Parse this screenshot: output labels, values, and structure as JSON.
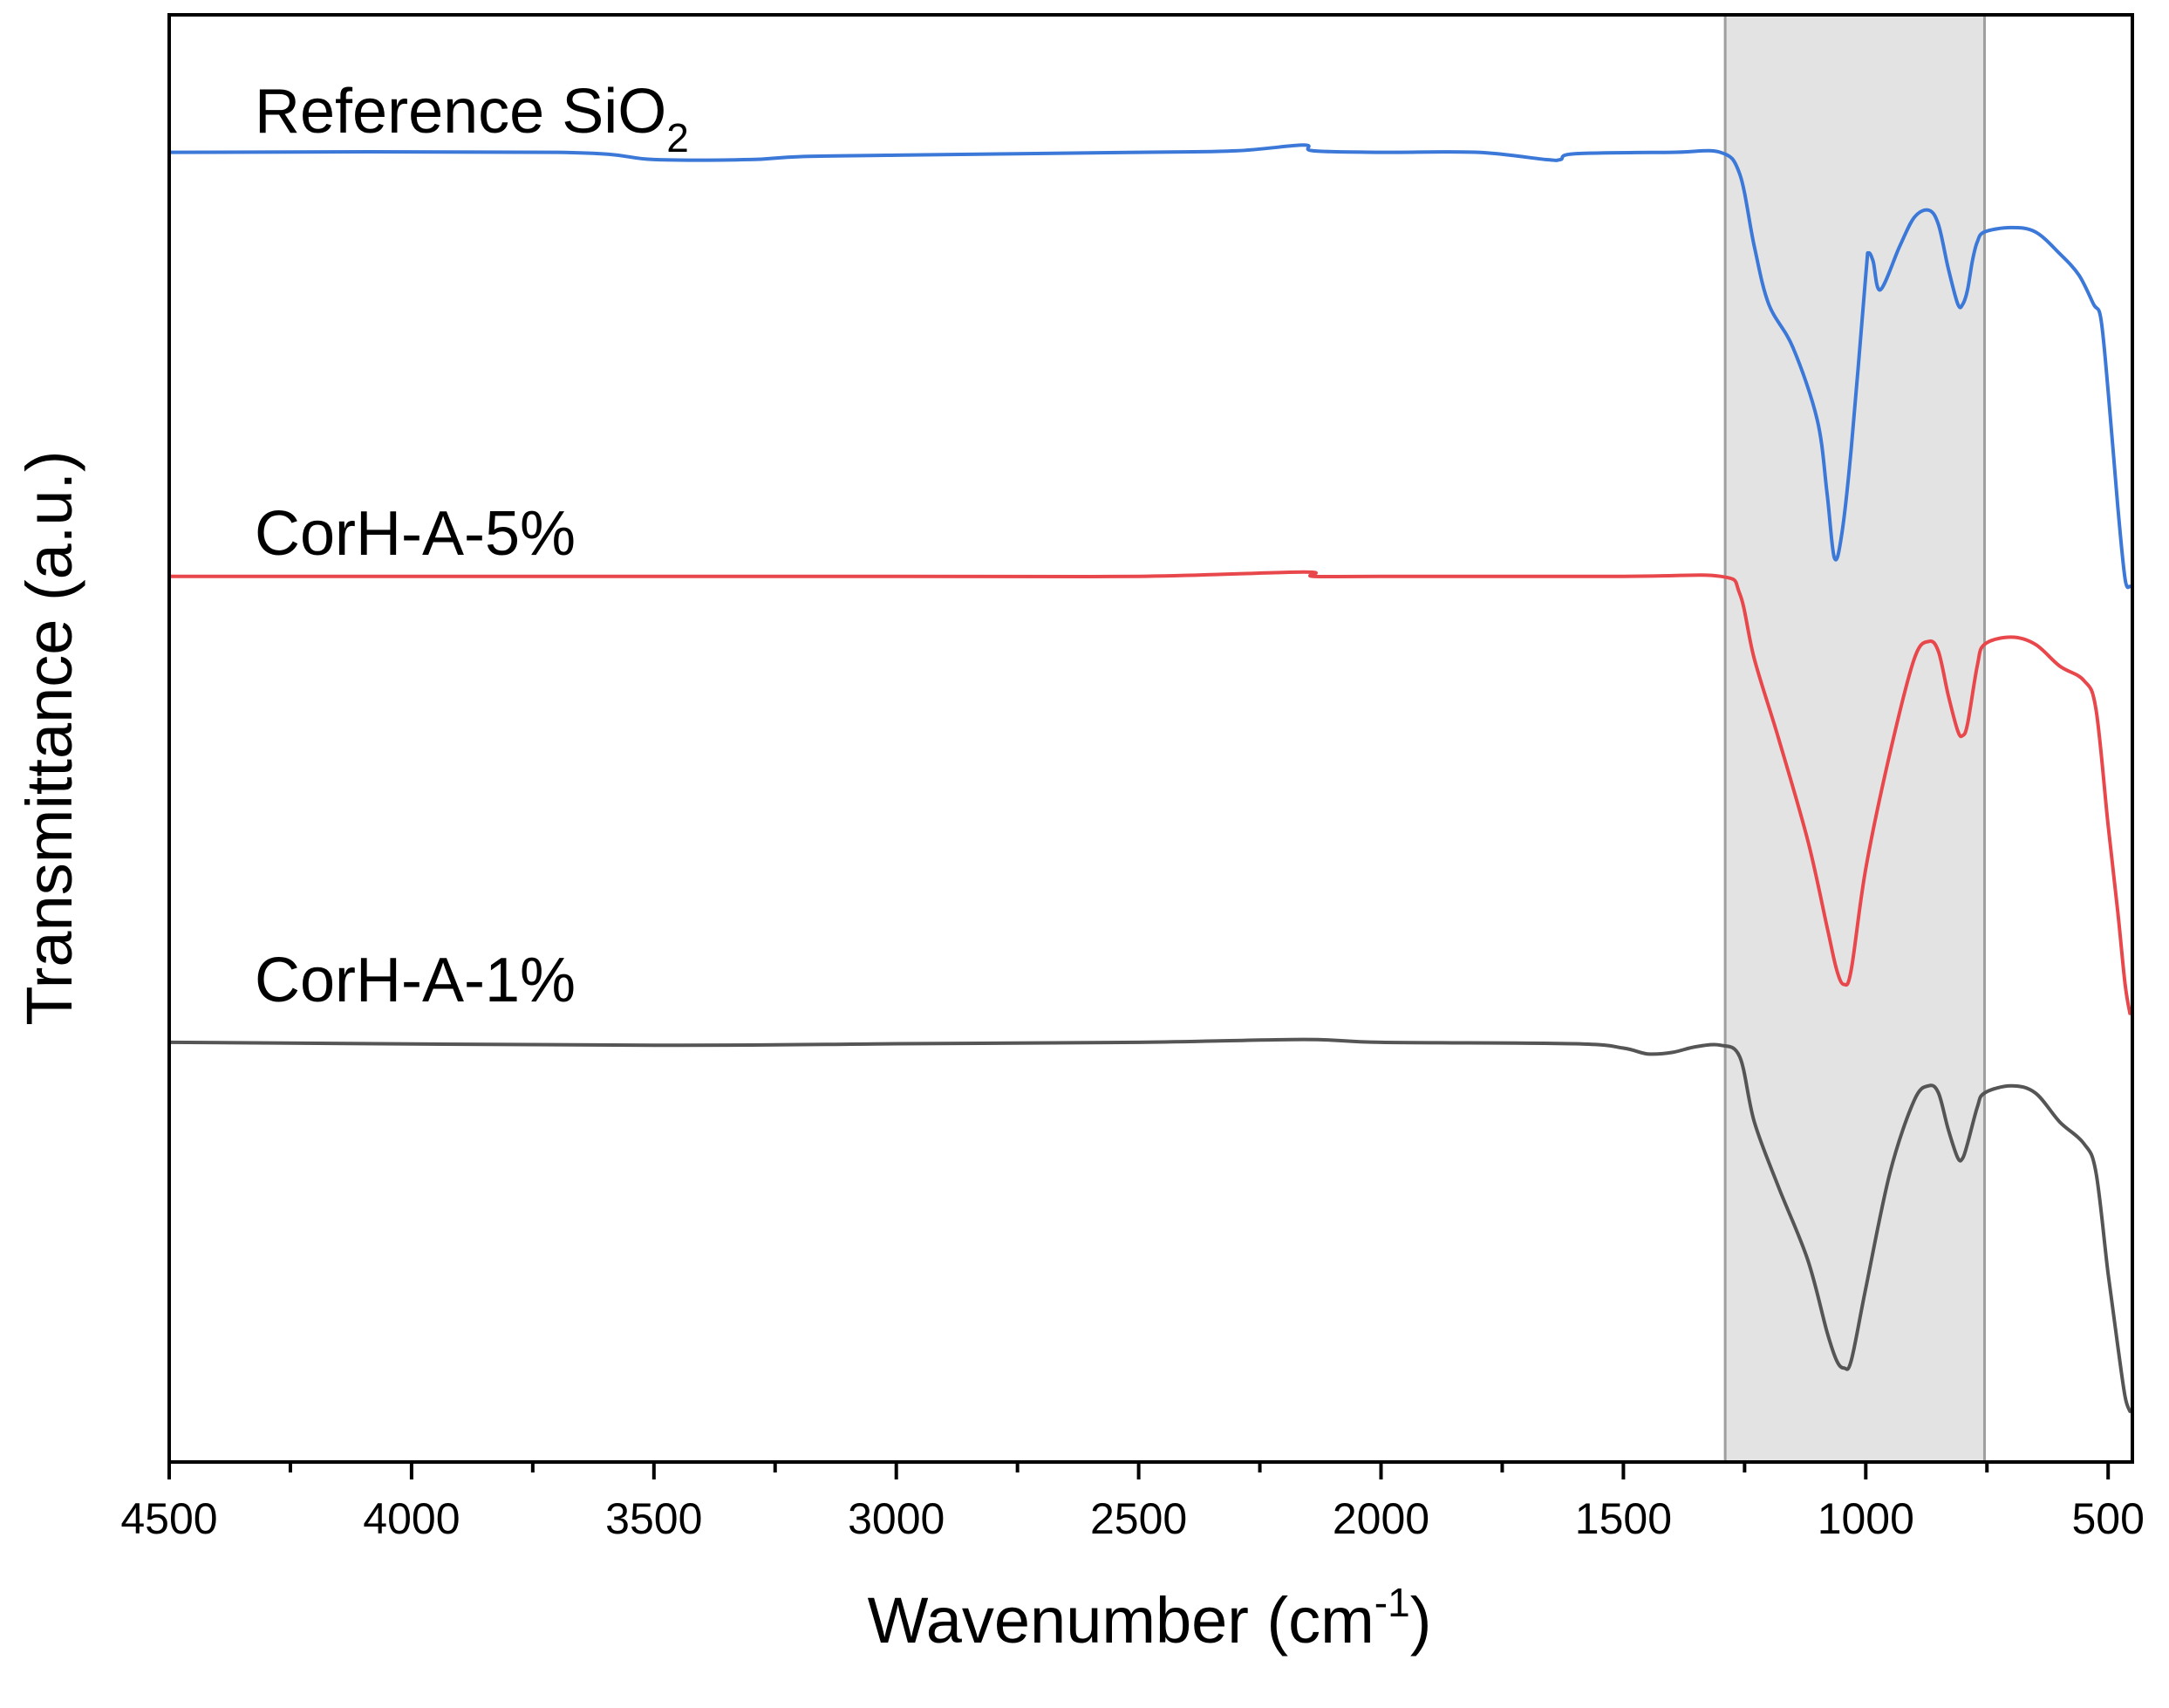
{
  "chart_data": {
    "type": "line",
    "title": "",
    "xlabel": {
      "main": "Wavenumber (cm",
      "superscript": "-1",
      "close": ")"
    },
    "ylabel": "Transmittance (a.u.)",
    "x_reversed": true,
    "xlim": [
      4500,
      450
    ],
    "ylim": [
      0,
      1
    ],
    "x_ticks": [
      "4500",
      "4000",
      "3500",
      "3000",
      "2500",
      "2000",
      "1500",
      "1000",
      "500"
    ],
    "x_tick_values": [
      4500,
      4000,
      3500,
      3000,
      2500,
      2000,
      1500,
      1000,
      500
    ],
    "x_minor_tick_values": [
      4250,
      3750,
      3250,
      2750,
      2250,
      1750,
      1250,
      750
    ],
    "shaded_region": {
      "x_start": 1290,
      "x_end": 755,
      "fill": "#e3e3e3",
      "edge": "#9e9e9e"
    },
    "series": [
      {
        "name": "Reference SiO2",
        "label": {
          "main": "Reference SiO",
          "subscript": "2"
        },
        "color": "#3b78d8",
        "x": [
          4500,
          3700,
          3500,
          3300,
          3200,
          3000,
          2500,
          2300,
          2160,
          2140,
          2000,
          1800,
          1660,
          1630,
          1600,
          1400,
          1300,
          1260,
          1230,
          1200,
          1150,
          1100,
          1080,
          1065,
          1050,
          1030,
          1000,
          995,
          985,
          970,
          930,
          900,
          870,
          850,
          830,
          810,
          800,
          790,
          780,
          770,
          755,
          700,
          650,
          600,
          560,
          530,
          515,
          500,
          480,
          465,
          455
        ],
        "y": [
          0.905,
          0.905,
          0.9,
          0.9,
          0.902,
          0.903,
          0.905,
          0.906,
          0.91,
          0.906,
          0.905,
          0.905,
          0.9,
          0.9,
          0.904,
          0.905,
          0.905,
          0.89,
          0.84,
          0.8,
          0.77,
          0.72,
          0.67,
          0.625,
          0.64,
          0.7,
          0.82,
          0.835,
          0.83,
          0.81,
          0.84,
          0.86,
          0.865,
          0.855,
          0.825,
          0.8,
          0.8,
          0.81,
          0.83,
          0.843,
          0.85,
          0.853,
          0.85,
          0.835,
          0.82,
          0.8,
          0.79,
          0.74,
          0.66,
          0.61,
          0.605
        ]
      },
      {
        "name": "CorH-A-5%",
        "label": {
          "main": "CorH-A-5%",
          "subscript": ""
        },
        "color": "#e8474b",
        "x": [
          4500,
          3000,
          2500,
          2160,
          2140,
          2000,
          1500,
          1300,
          1260,
          1230,
          1180,
          1120,
          1080,
          1060,
          1045,
          1030,
          1000,
          950,
          900,
          870,
          850,
          830,
          810,
          800,
          790,
          770,
          755,
          700,
          650,
          600,
          550,
          525,
          500,
          480,
          465,
          455
        ],
        "y": [
          0.612,
          0.612,
          0.612,
          0.615,
          0.612,
          0.612,
          0.612,
          0.612,
          0.6,
          0.555,
          0.5,
          0.43,
          0.37,
          0.34,
          0.33,
          0.34,
          0.41,
          0.49,
          0.555,
          0.567,
          0.56,
          0.53,
          0.505,
          0.502,
          0.51,
          0.55,
          0.565,
          0.57,
          0.565,
          0.55,
          0.54,
          0.52,
          0.44,
          0.38,
          0.33,
          0.31
        ]
      },
      {
        "name": "CorH-A-1%",
        "label": {
          "main": "CorH-A-1%",
          "subscript": ""
        },
        "color": "#555555",
        "x": [
          4500,
          3500,
          3000,
          2500,
          2160,
          2000,
          1600,
          1500,
          1450,
          1400,
          1350,
          1300,
          1260,
          1230,
          1180,
          1120,
          1080,
          1060,
          1045,
          1030,
          1000,
          950,
          900,
          870,
          850,
          830,
          810,
          800,
          790,
          770,
          755,
          700,
          650,
          600,
          550,
          525,
          500,
          480,
          465,
          455
        ],
        "y": [
          0.29,
          0.288,
          0.289,
          0.29,
          0.292,
          0.29,
          0.289,
          0.286,
          0.282,
          0.283,
          0.287,
          0.288,
          0.28,
          0.235,
          0.19,
          0.14,
          0.09,
          0.07,
          0.065,
          0.07,
          0.12,
          0.2,
          0.25,
          0.26,
          0.255,
          0.23,
          0.21,
          0.21,
          0.22,
          0.245,
          0.255,
          0.26,
          0.255,
          0.235,
          0.22,
          0.2,
          0.13,
          0.08,
          0.045,
          0.035
        ]
      }
    ]
  }
}
